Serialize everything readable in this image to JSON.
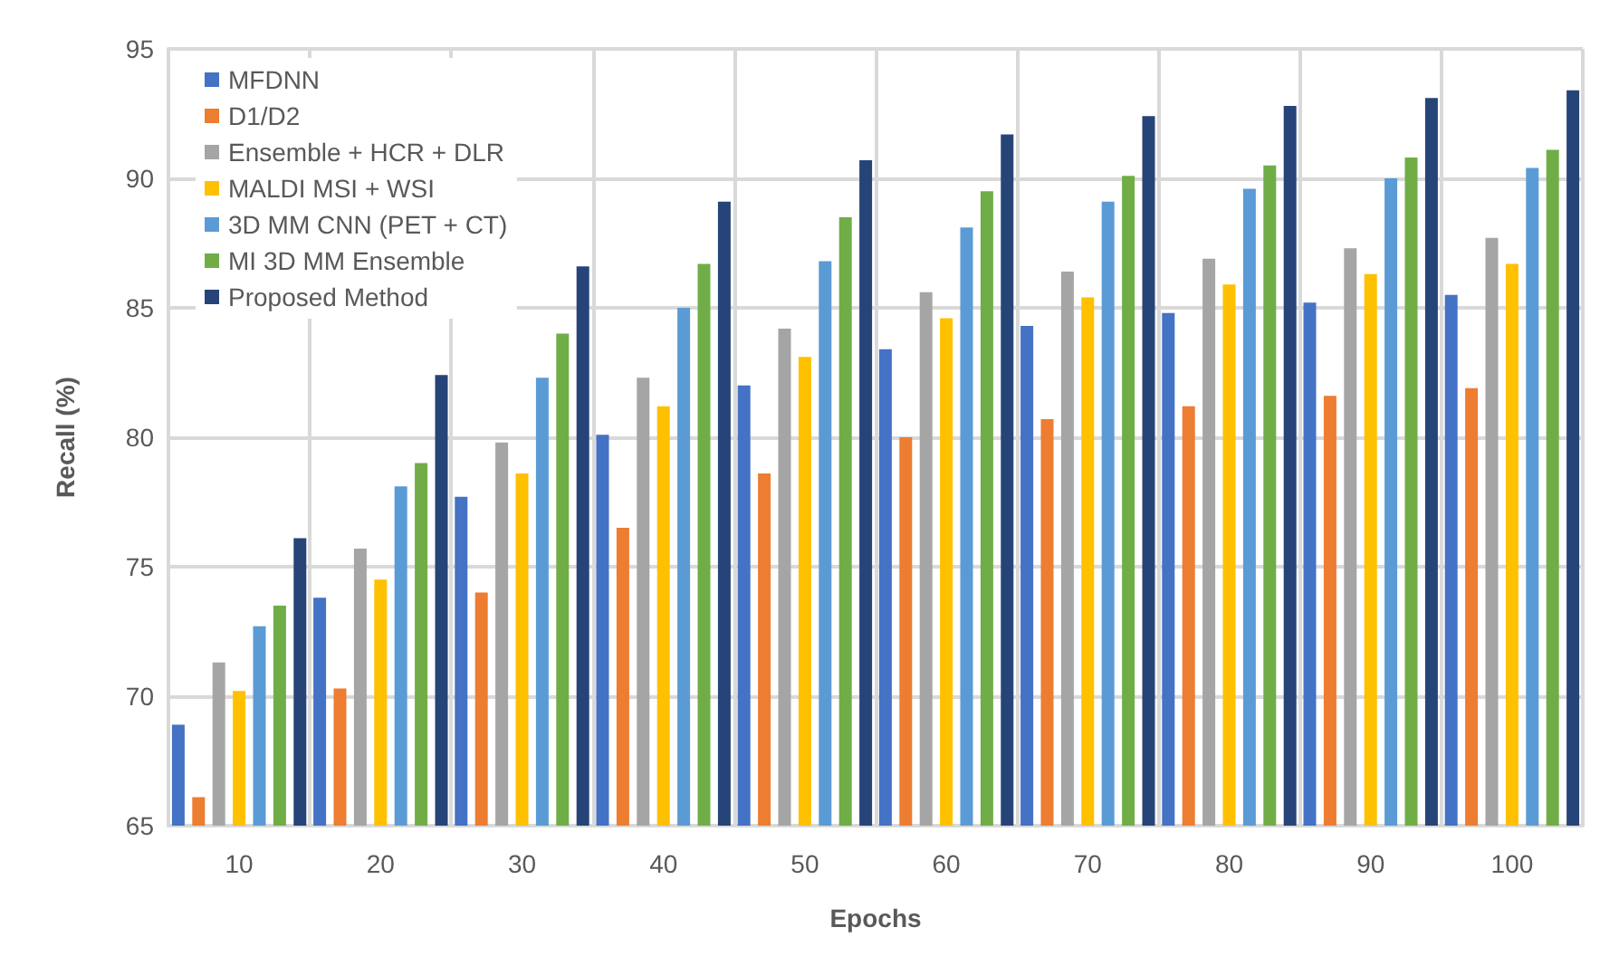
{
  "chart_data": {
    "type": "bar",
    "xlabel": "Epochs",
    "ylabel": "Recall (%)",
    "categories": [
      "10",
      "20",
      "30",
      "40",
      "50",
      "60",
      "70",
      "80",
      "90",
      "100"
    ],
    "ylim": [
      65,
      95
    ],
    "yticks": [
      65,
      70,
      75,
      80,
      85,
      90,
      95
    ],
    "grid": true,
    "legend": "top left",
    "series": [
      {
        "name": "MFDNN",
        "color": "#4472c4",
        "values": [
          68.9,
          73.8,
          77.7,
          80.1,
          82.0,
          83.4,
          84.3,
          84.8,
          85.2,
          85.5
        ]
      },
      {
        "name": "D1/D2",
        "color": "#ed7d31",
        "values": [
          66.1,
          70.3,
          74.0,
          76.5,
          78.6,
          80.0,
          80.7,
          81.2,
          81.6,
          81.9
        ]
      },
      {
        "name": "Ensemble + HCR + DLR",
        "color": "#a5a5a5",
        "values": [
          71.3,
          75.7,
          79.8,
          82.3,
          84.2,
          85.6,
          86.4,
          86.9,
          87.3,
          87.7
        ]
      },
      {
        "name": "MALDI MSI + WSI",
        "color": "#ffc000",
        "values": [
          70.2,
          74.5,
          78.6,
          81.2,
          83.1,
          84.6,
          85.4,
          85.9,
          86.3,
          86.7
        ]
      },
      {
        "name": "3D MM CNN (PET + CT)",
        "color": "#5b9bd5",
        "values": [
          72.7,
          78.1,
          82.3,
          85.0,
          86.8,
          88.1,
          89.1,
          89.6,
          90.0,
          90.4
        ]
      },
      {
        "name": "MI 3D MM Ensemble",
        "color": "#70ad47",
        "values": [
          73.5,
          79.0,
          84.0,
          86.7,
          88.5,
          89.5,
          90.1,
          90.5,
          90.8,
          91.1
        ]
      },
      {
        "name": "Proposed Method",
        "color": "#264478",
        "values": [
          76.1,
          82.4,
          86.6,
          89.1,
          90.7,
          91.7,
          92.4,
          92.8,
          93.1,
          93.4
        ]
      }
    ]
  }
}
